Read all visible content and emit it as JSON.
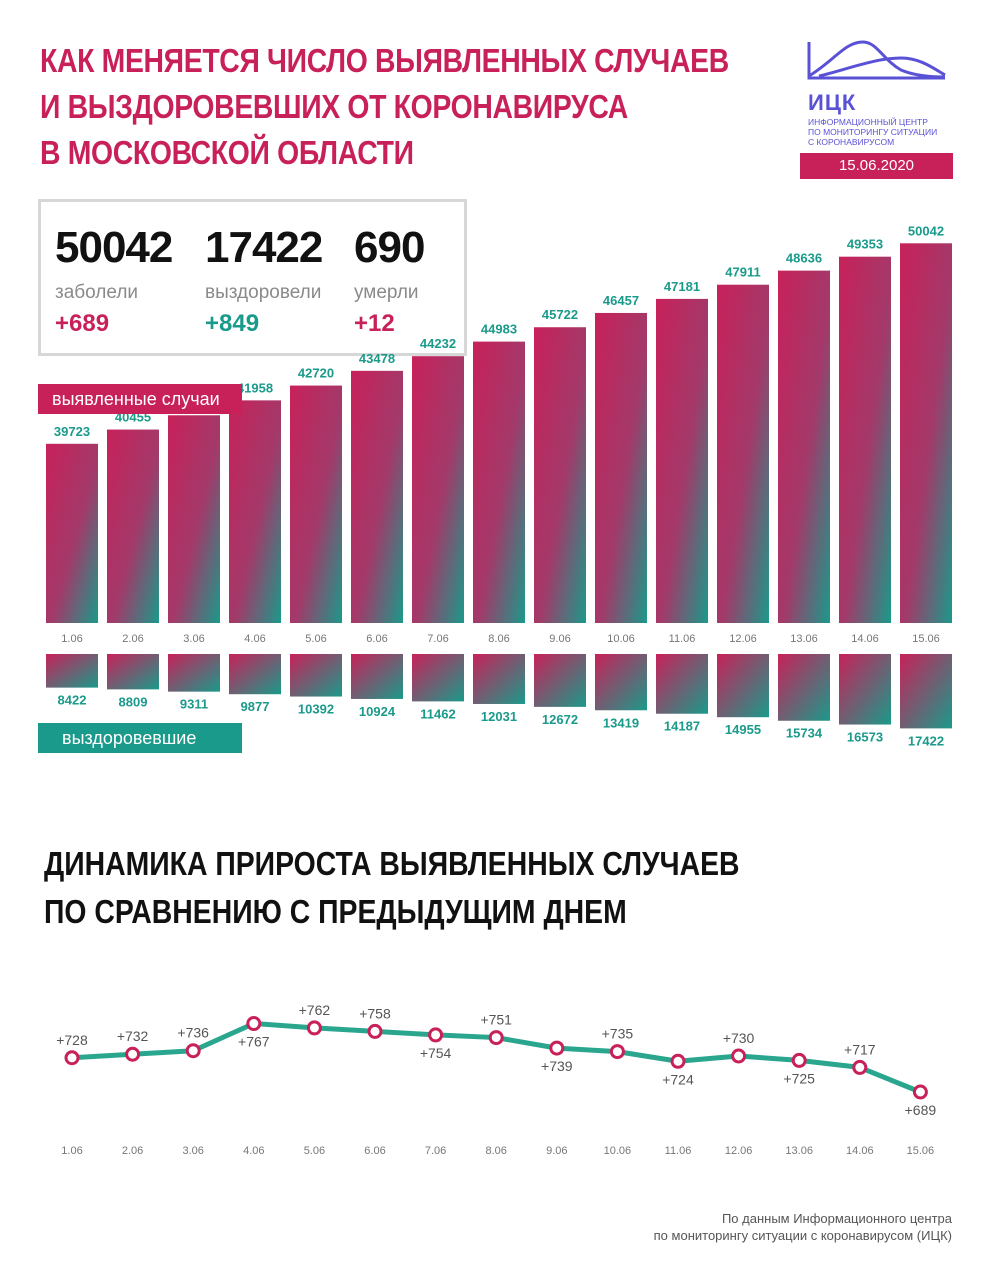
{
  "header": {
    "title_lines": [
      "Как меняется число выявленных случаев",
      "и выздоровевших от коронавируса",
      "в Московской области"
    ],
    "logo_name": "ИЦК",
    "logo_sub": [
      "Информационный центр",
      "по мониторингу ситуации",
      "с коронавирусом"
    ],
    "date": "15.06.2020"
  },
  "stats": [
    {
      "value": "50042",
      "label": "заболели",
      "delta": "+689",
      "color": "red"
    },
    {
      "value": "17422",
      "label": "выздоровели",
      "delta": "+849",
      "color": "green"
    },
    {
      "value": "690",
      "label": "умерли",
      "delta": "+12",
      "color": "red"
    }
  ],
  "colors": {
    "accent_red": "#c8215a",
    "accent_green": "#1a9a8a",
    "logo_blue": "#5a52d6"
  },
  "chart_labels": {
    "cases": "выявленные случаи",
    "recovered": "выздоровевшие"
  },
  "section2_lines": [
    "Динамика прироста выявленных случаев",
    "по сравнению с предыдущим днем"
  ],
  "footer_lines": [
    "По данным Информационного центра",
    "по мониторингу ситуации с коронавирусом (ИЦК)"
  ],
  "chart_data": [
    {
      "type": "bar",
      "categories": [
        "1.06",
        "2.06",
        "3.06",
        "4.06",
        "5.06",
        "6.06",
        "7.06",
        "8.06",
        "9.06",
        "10.06",
        "11.06",
        "12.06",
        "13.06",
        "14.06",
        "15.06"
      ],
      "series": [
        {
          "name": "выявленные случаи",
          "values": [
            39723,
            40455,
            41191,
            41958,
            42720,
            43478,
            44232,
            44983,
            45722,
            46457,
            47181,
            47911,
            48636,
            49353,
            50042
          ]
        },
        {
          "name": "выздоровевшие",
          "values": [
            8422,
            8809,
            9311,
            9877,
            10392,
            10924,
            11462,
            12031,
            12672,
            13419,
            14187,
            14955,
            15734,
            16573,
            17422
          ]
        }
      ]
    },
    {
      "type": "line",
      "categories": [
        "1.06",
        "2.06",
        "3.06",
        "4.06",
        "5.06",
        "6.06",
        "7.06",
        "8.06",
        "9.06",
        "10.06",
        "11.06",
        "12.06",
        "13.06",
        "14.06",
        "15.06"
      ],
      "values": [
        728,
        732,
        736,
        767,
        762,
        758,
        754,
        751,
        739,
        735,
        724,
        730,
        725,
        717,
        689
      ],
      "labels": [
        "+728",
        "+732",
        "+736",
        "+767",
        "+762",
        "+758",
        "+754",
        "+751",
        "+739",
        "+735",
        "+724",
        "+730",
        "+725",
        "+717",
        "+689"
      ]
    }
  ]
}
